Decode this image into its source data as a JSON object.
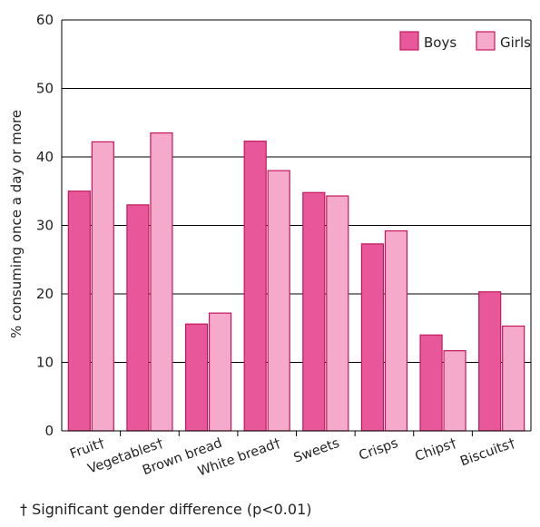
{
  "colors": {
    "boys": "#e8579a",
    "girls": "#f5a9cb",
    "stroke": "#c2185b"
  },
  "footnote": "† Significant gender difference (p<0.01)",
  "chart_data": {
    "type": "bar",
    "ylabel": "% consuming once a day or more",
    "xlabel": "",
    "ylim": [
      0,
      60
    ],
    "yticks": [
      0,
      10,
      20,
      30,
      40,
      50,
      60
    ],
    "grid": true,
    "legend": "top-right",
    "categories": [
      "Fruit†",
      "Vegetables†",
      "Brown bread",
      "White bread†",
      "Sweets",
      "Crisps",
      "Chips†",
      "Biscuits†"
    ],
    "series": [
      {
        "name": "Boys",
        "values": [
          35,
          33,
          15.6,
          42.3,
          34.8,
          27.3,
          14,
          20.3
        ]
      },
      {
        "name": "Girls",
        "values": [
          42.2,
          43.5,
          17.2,
          38,
          34.3,
          29.2,
          11.7,
          15.3
        ]
      }
    ]
  }
}
